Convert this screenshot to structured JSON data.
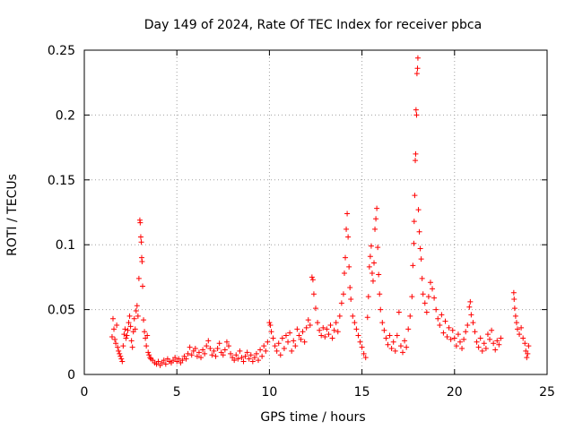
{
  "chart_data": {
    "type": "scatter",
    "title": "Day 149 of 2024, Rate Of TEC Index for receiver pbca",
    "xlabel": "GPS time / hours",
    "ylabel": "ROTI / TECUs",
    "xlim": [
      0,
      25
    ],
    "ylim": [
      0,
      0.25
    ],
    "xticks": [
      "0",
      "5",
      "10",
      "15",
      "20",
      "25"
    ],
    "yticks": [
      "0",
      "0.05",
      "0.1",
      "0.15",
      "0.2",
      "0.25"
    ],
    "grid": true,
    "marker": "plus",
    "color": "#ff0000",
    "series": [
      {
        "points": [
          [
            1.5,
            0.029
          ],
          [
            1.55,
            0.043
          ],
          [
            1.6,
            0.035
          ],
          [
            1.65,
            0.027
          ],
          [
            1.7,
            0.024
          ],
          [
            1.75,
            0.038
          ],
          [
            1.8,
            0.021
          ],
          [
            1.85,
            0.018
          ],
          [
            1.9,
            0.016
          ],
          [
            1.95,
            0.014
          ],
          [
            2.0,
            0.012
          ],
          [
            2.05,
            0.01
          ],
          [
            2.1,
            0.022
          ],
          [
            2.15,
            0.031
          ],
          [
            2.2,
            0.035
          ],
          [
            2.25,
            0.028
          ],
          [
            2.3,
            0.03
          ],
          [
            2.35,
            0.034
          ],
          [
            2.4,
            0.04
          ],
          [
            2.45,
            0.045
          ],
          [
            2.5,
            0.037
          ],
          [
            2.55,
            0.026
          ],
          [
            2.6,
            0.021
          ],
          [
            2.65,
            0.033
          ],
          [
            2.7,
            0.043
          ],
          [
            2.75,
            0.035
          ],
          [
            2.8,
            0.049
          ],
          [
            2.85,
            0.053
          ],
          [
            2.9,
            0.045
          ],
          [
            2.95,
            0.074
          ],
          [
            3.0,
            0.119
          ],
          [
            3.02,
            0.117
          ],
          [
            3.05,
            0.106
          ],
          [
            3.08,
            0.102
          ],
          [
            3.1,
            0.09
          ],
          [
            3.12,
            0.087
          ],
          [
            3.15,
            0.068
          ],
          [
            3.2,
            0.042
          ],
          [
            3.25,
            0.033
          ],
          [
            3.3,
            0.028
          ],
          [
            3.35,
            0.022
          ],
          [
            3.4,
            0.03
          ],
          [
            3.45,
            0.017
          ],
          [
            3.5,
            0.015
          ],
          [
            3.55,
            0.013
          ],
          [
            3.6,
            0.012
          ],
          [
            3.7,
            0.011
          ],
          [
            3.8,
            0.009
          ],
          [
            3.9,
            0.008
          ],
          [
            4.0,
            0.01
          ],
          [
            4.1,
            0.007
          ],
          [
            4.2,
            0.009
          ],
          [
            4.3,
            0.011
          ],
          [
            4.4,
            0.008
          ],
          [
            4.5,
            0.012
          ],
          [
            4.6,
            0.01
          ],
          [
            4.7,
            0.009
          ],
          [
            4.8,
            0.011
          ],
          [
            4.9,
            0.013
          ],
          [
            5.0,
            0.01
          ],
          [
            5.1,
            0.012
          ],
          [
            5.2,
            0.009
          ],
          [
            5.3,
            0.011
          ],
          [
            5.4,
            0.014
          ],
          [
            5.5,
            0.012
          ],
          [
            5.6,
            0.016
          ],
          [
            5.7,
            0.021
          ],
          [
            5.8,
            0.015
          ],
          [
            5.9,
            0.018
          ],
          [
            6.0,
            0.02
          ],
          [
            6.1,
            0.014
          ],
          [
            6.2,
            0.017
          ],
          [
            6.3,
            0.013
          ],
          [
            6.4,
            0.019
          ],
          [
            6.5,
            0.016
          ],
          [
            6.6,
            0.022
          ],
          [
            6.7,
            0.026
          ],
          [
            6.8,
            0.02
          ],
          [
            6.9,
            0.015
          ],
          [
            7.0,
            0.018
          ],
          [
            7.1,
            0.014
          ],
          [
            7.2,
            0.02
          ],
          [
            7.3,
            0.024
          ],
          [
            7.4,
            0.017
          ],
          [
            7.5,
            0.015
          ],
          [
            7.6,
            0.019
          ],
          [
            7.7,
            0.025
          ],
          [
            7.8,
            0.022
          ],
          [
            7.9,
            0.016
          ],
          [
            8.0,
            0.013
          ],
          [
            8.1,
            0.011
          ],
          [
            8.2,
            0.015
          ],
          [
            8.3,
            0.012
          ],
          [
            8.4,
            0.018
          ],
          [
            8.5,
            0.013
          ],
          [
            8.6,
            0.01
          ],
          [
            8.7,
            0.014
          ],
          [
            8.8,
            0.017
          ],
          [
            8.9,
            0.012
          ],
          [
            9.0,
            0.015
          ],
          [
            9.1,
            0.01
          ],
          [
            9.2,
            0.013
          ],
          [
            9.3,
            0.016
          ],
          [
            9.4,
            0.011
          ],
          [
            9.5,
            0.019
          ],
          [
            9.6,
            0.014
          ],
          [
            9.7,
            0.022
          ],
          [
            9.8,
            0.018
          ],
          [
            9.9,
            0.025
          ],
          [
            10.0,
            0.04
          ],
          [
            10.05,
            0.038
          ],
          [
            10.1,
            0.033
          ],
          [
            10.2,
            0.028
          ],
          [
            10.3,
            0.022
          ],
          [
            10.4,
            0.018
          ],
          [
            10.5,
            0.024
          ],
          [
            10.6,
            0.015
          ],
          [
            10.7,
            0.028
          ],
          [
            10.8,
            0.02
          ],
          [
            10.9,
            0.03
          ],
          [
            11.0,
            0.025
          ],
          [
            11.1,
            0.032
          ],
          [
            11.2,
            0.018
          ],
          [
            11.3,
            0.026
          ],
          [
            11.4,
            0.022
          ],
          [
            11.5,
            0.035
          ],
          [
            11.6,
            0.03
          ],
          [
            11.7,
            0.027
          ],
          [
            11.8,
            0.033
          ],
          [
            11.9,
            0.025
          ],
          [
            12.0,
            0.036
          ],
          [
            12.1,
            0.042
          ],
          [
            12.2,
            0.038
          ],
          [
            12.3,
            0.075
          ],
          [
            12.35,
            0.073
          ],
          [
            12.4,
            0.062
          ],
          [
            12.5,
            0.051
          ],
          [
            12.6,
            0.04
          ],
          [
            12.7,
            0.034
          ],
          [
            12.8,
            0.03
          ],
          [
            12.9,
            0.036
          ],
          [
            13.0,
            0.029
          ],
          [
            13.1,
            0.035
          ],
          [
            13.2,
            0.031
          ],
          [
            13.3,
            0.038
          ],
          [
            13.4,
            0.028
          ],
          [
            13.5,
            0.034
          ],
          [
            13.6,
            0.04
          ],
          [
            13.7,
            0.033
          ],
          [
            13.8,
            0.045
          ],
          [
            13.9,
            0.055
          ],
          [
            14.0,
            0.062
          ],
          [
            14.05,
            0.078
          ],
          [
            14.1,
            0.09
          ],
          [
            14.15,
            0.112
          ],
          [
            14.2,
            0.124
          ],
          [
            14.25,
            0.106
          ],
          [
            14.3,
            0.083
          ],
          [
            14.35,
            0.067
          ],
          [
            14.4,
            0.058
          ],
          [
            14.5,
            0.045
          ],
          [
            14.6,
            0.04
          ],
          [
            14.7,
            0.035
          ],
          [
            14.8,
            0.03
          ],
          [
            14.9,
            0.025
          ],
          [
            15.0,
            0.021
          ],
          [
            15.1,
            0.016
          ],
          [
            15.2,
            0.013
          ],
          [
            15.3,
            0.044
          ],
          [
            15.35,
            0.06
          ],
          [
            15.4,
            0.083
          ],
          [
            15.45,
            0.091
          ],
          [
            15.5,
            0.099
          ],
          [
            15.55,
            0.078
          ],
          [
            15.6,
            0.072
          ],
          [
            15.65,
            0.086
          ],
          [
            15.7,
            0.112
          ],
          [
            15.75,
            0.12
          ],
          [
            15.8,
            0.128
          ],
          [
            15.85,
            0.098
          ],
          [
            15.9,
            0.077
          ],
          [
            15.95,
            0.062
          ],
          [
            16.0,
            0.05
          ],
          [
            16.1,
            0.04
          ],
          [
            16.2,
            0.034
          ],
          [
            16.3,
            0.028
          ],
          [
            16.4,
            0.023
          ],
          [
            16.5,
            0.03
          ],
          [
            16.6,
            0.02
          ],
          [
            16.7,
            0.025
          ],
          [
            16.8,
            0.018
          ],
          [
            16.9,
            0.03
          ],
          [
            17.0,
            0.048
          ],
          [
            17.1,
            0.022
          ],
          [
            17.2,
            0.017
          ],
          [
            17.3,
            0.026
          ],
          [
            17.4,
            0.021
          ],
          [
            17.5,
            0.035
          ],
          [
            17.6,
            0.045
          ],
          [
            17.7,
            0.06
          ],
          [
            17.75,
            0.084
          ],
          [
            17.8,
            0.101
          ],
          [
            17.82,
            0.118
          ],
          [
            17.85,
            0.138
          ],
          [
            17.88,
            0.165
          ],
          [
            17.9,
            0.17
          ],
          [
            17.92,
            0.204
          ],
          [
            17.95,
            0.2
          ],
          [
            17.97,
            0.232
          ],
          [
            18.0,
            0.236
          ],
          [
            18.02,
            0.244
          ],
          [
            18.05,
            0.127
          ],
          [
            18.1,
            0.11
          ],
          [
            18.15,
            0.097
          ],
          [
            18.2,
            0.089
          ],
          [
            18.25,
            0.074
          ],
          [
            18.3,
            0.062
          ],
          [
            18.4,
            0.055
          ],
          [
            18.5,
            0.048
          ],
          [
            18.6,
            0.06
          ],
          [
            18.7,
            0.071
          ],
          [
            18.8,
            0.066
          ],
          [
            18.9,
            0.059
          ],
          [
            19.0,
            0.05
          ],
          [
            19.1,
            0.043
          ],
          [
            19.2,
            0.038
          ],
          [
            19.3,
            0.046
          ],
          [
            19.4,
            0.032
          ],
          [
            19.5,
            0.041
          ],
          [
            19.6,
            0.029
          ],
          [
            19.7,
            0.036
          ],
          [
            19.8,
            0.027
          ],
          [
            19.9,
            0.034
          ],
          [
            20.0,
            0.028
          ],
          [
            20.1,
            0.022
          ],
          [
            20.2,
            0.031
          ],
          [
            20.3,
            0.025
          ],
          [
            20.4,
            0.02
          ],
          [
            20.5,
            0.027
          ],
          [
            20.6,
            0.033
          ],
          [
            20.7,
            0.038
          ],
          [
            20.8,
            0.052
          ],
          [
            20.85,
            0.056
          ],
          [
            20.9,
            0.046
          ],
          [
            21.0,
            0.04
          ],
          [
            21.1,
            0.033
          ],
          [
            21.2,
            0.025
          ],
          [
            21.3,
            0.021
          ],
          [
            21.4,
            0.028
          ],
          [
            21.5,
            0.018
          ],
          [
            21.6,
            0.024
          ],
          [
            21.7,
            0.02
          ],
          [
            21.8,
            0.031
          ],
          [
            21.9,
            0.027
          ],
          [
            22.0,
            0.034
          ],
          [
            22.1,
            0.024
          ],
          [
            22.2,
            0.019
          ],
          [
            22.3,
            0.026
          ],
          [
            22.4,
            0.023
          ],
          [
            22.5,
            0.028
          ],
          [
            23.2,
            0.063
          ],
          [
            23.22,
            0.058
          ],
          [
            23.25,
            0.051
          ],
          [
            23.3,
            0.045
          ],
          [
            23.35,
            0.04
          ],
          [
            23.4,
            0.035
          ],
          [
            23.5,
            0.031
          ],
          [
            23.6,
            0.036
          ],
          [
            23.7,
            0.028
          ],
          [
            23.8,
            0.024
          ],
          [
            23.85,
            0.018
          ],
          [
            23.9,
            0.013
          ],
          [
            23.95,
            0.016
          ],
          [
            24.0,
            0.022
          ]
        ]
      }
    ]
  }
}
